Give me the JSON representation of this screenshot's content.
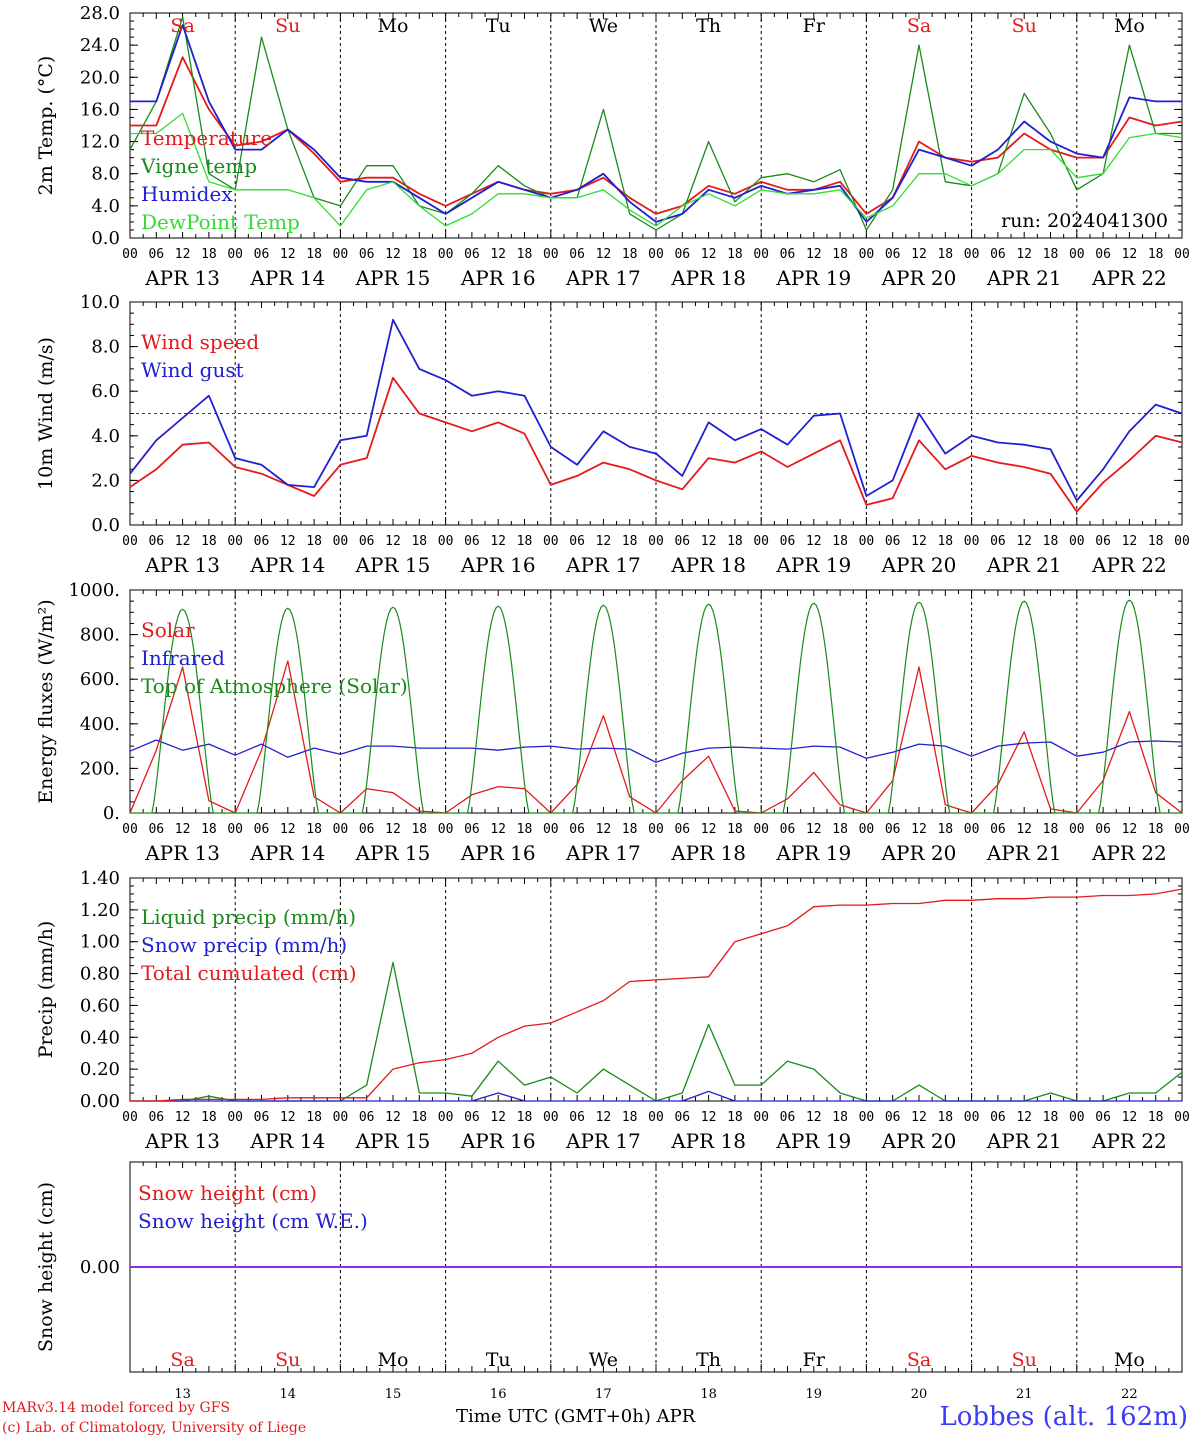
{
  "footer": {
    "model": "MARv3.14 model forced by GFS",
    "credit": "(c) Lab. of Climatology, University of Liege",
    "xlabel": "Time UTC (GMT+0h)",
    "month": "APR",
    "station": "Lobbes (alt. 162m)"
  },
  "colors": {
    "red": "#e41a1c",
    "green": "#1a8a1a",
    "blue": "#2020d0",
    "lightgreen": "#33dd33",
    "purple": "#8a2be2"
  },
  "chart_data": [
    {
      "type": "line",
      "ylabel": "2m Temp. (°C)",
      "ylim": [
        0,
        28
      ],
      "yticks": [
        "0.0",
        "4.0",
        "8.0",
        "12.0",
        "16.0",
        "20.0",
        "24.0",
        "28.0"
      ],
      "hour_ticks": [
        "00",
        "06",
        "12",
        "18"
      ],
      "days": [
        {
          "label": "Sa",
          "date": "APR 13",
          "weekend": true
        },
        {
          "label": "Su",
          "date": "APR 14",
          "weekend": true
        },
        {
          "label": "Mo",
          "date": "APR 15",
          "weekend": false
        },
        {
          "label": "Tu",
          "date": "APR 16",
          "weekend": false
        },
        {
          "label": "We",
          "date": "APR 17",
          "weekend": false
        },
        {
          "label": "Th",
          "date": "APR 18",
          "weekend": false
        },
        {
          "label": "Fr",
          "date": "APR 19",
          "weekend": false
        },
        {
          "label": "Sa",
          "date": "APR 20",
          "weekend": true
        },
        {
          "label": "Su",
          "date": "APR 21",
          "weekend": true
        },
        {
          "label": "Mo",
          "date": "APR 22",
          "weekend": false
        }
      ],
      "annotation": "run: 2024041300",
      "x_hours": [
        0,
        6,
        12,
        18,
        24,
        30,
        36,
        42,
        48,
        54,
        60,
        66,
        72,
        78,
        84,
        90,
        96,
        102,
        108,
        114,
        120,
        126,
        132,
        138,
        144,
        150,
        156,
        162,
        168,
        174,
        180,
        186,
        192,
        198,
        204,
        210,
        216,
        222,
        228,
        234,
        240
      ],
      "series": [
        {
          "name": "Temperature",
          "color": "red",
          "values": [
            14,
            14,
            22.5,
            16,
            11.5,
            12,
            13.5,
            10.5,
            7,
            7.5,
            7.5,
            5.5,
            4,
            5.5,
            7,
            6,
            5.5,
            6,
            7.5,
            5,
            3,
            4,
            6.5,
            5.5,
            7,
            6,
            6,
            7,
            3,
            5,
            12,
            10,
            9.5,
            10,
            13,
            11,
            10,
            10,
            15,
            14,
            14.5
          ]
        },
        {
          "name": "Vigne temp",
          "color": "green",
          "values": [
            11,
            17,
            27.5,
            8,
            6,
            25,
            13.5,
            5,
            4,
            9,
            9,
            4,
            3,
            5.5,
            9,
            6.5,
            5,
            5,
            16,
            3,
            1,
            3,
            12,
            4.5,
            7.5,
            8,
            7,
            8.5,
            1,
            6,
            24,
            7,
            6.5,
            8,
            18,
            13,
            6,
            8,
            24,
            13,
            13
          ]
        },
        {
          "name": "Humidex",
          "color": "blue",
          "values": [
            17,
            17,
            26.5,
            17,
            11,
            11,
            13.5,
            11,
            7.5,
            7,
            7,
            5,
            3,
            5,
            7,
            6,
            5,
            6,
            8,
            4.5,
            2,
            3,
            6,
            5,
            6.5,
            5.5,
            6,
            6.5,
            2,
            5,
            11,
            10,
            9,
            11,
            14.5,
            12,
            10.5,
            10,
            17.5,
            17,
            17
          ]
        },
        {
          "name": "DewPoint Temp",
          "color": "lightgreen",
          "values": [
            13,
            13,
            15.5,
            7,
            6,
            6,
            6,
            5,
            1.5,
            6,
            7,
            4,
            1.5,
            3,
            5.5,
            5.5,
            5,
            5,
            6,
            3.5,
            1.5,
            4,
            5.5,
            4,
            6,
            5.5,
            5.5,
            6,
            2.5,
            4,
            8,
            8,
            6.5,
            8,
            11,
            11,
            7.5,
            8,
            12.5,
            13,
            12.5
          ]
        }
      ]
    },
    {
      "type": "line",
      "ylabel": "10m Wind (m/s)",
      "ylim": [
        0,
        10
      ],
      "yticks": [
        "0.0",
        "2.0",
        "4.0",
        "6.0",
        "8.0",
        "10.0"
      ],
      "reference_line": 5,
      "x_hours": [
        0,
        6,
        12,
        18,
        24,
        30,
        36,
        42,
        48,
        54,
        60,
        66,
        72,
        78,
        84,
        90,
        96,
        102,
        108,
        114,
        120,
        126,
        132,
        138,
        144,
        150,
        156,
        162,
        168,
        174,
        180,
        186,
        192,
        198,
        204,
        210,
        216,
        222,
        228,
        234,
        240
      ],
      "series": [
        {
          "name": "Wind speed",
          "color": "red",
          "values": [
            1.7,
            2.5,
            3.6,
            3.7,
            2.6,
            2.3,
            1.8,
            1.3,
            2.7,
            3,
            6.6,
            5,
            4.6,
            4.2,
            4.6,
            4.1,
            1.8,
            2.2,
            2.8,
            2.5,
            2,
            1.6,
            3,
            2.8,
            3.3,
            2.6,
            3.2,
            3.8,
            0.9,
            1.2,
            3.8,
            2.5,
            3.1,
            2.8,
            2.6,
            2.3,
            0.6,
            1.9,
            2.9,
            4,
            3.7
          ]
        },
        {
          "name": "Wind gust",
          "color": "blue",
          "values": [
            2.3,
            3.8,
            4.8,
            5.8,
            3,
            2.7,
            1.8,
            1.7,
            3.8,
            4,
            9.2,
            7,
            6.5,
            5.8,
            6,
            5.8,
            3.5,
            2.7,
            4.2,
            3.5,
            3.2,
            2.2,
            4.6,
            3.8,
            4.3,
            3.6,
            4.9,
            5,
            1.3,
            2,
            5,
            3.2,
            4,
            3.7,
            3.6,
            3.4,
            1.1,
            2.5,
            4.2,
            5.4,
            5
          ]
        }
      ]
    },
    {
      "type": "line",
      "ylabel": "Energy fluxes (W/m²)",
      "ylim": [
        0,
        1100
      ],
      "yticks": [
        "0.",
        "200.",
        "400.",
        "600.",
        "800.",
        "1000."
      ],
      "x_hours": [
        0,
        6,
        12,
        18,
        24,
        30,
        36,
        42,
        48,
        54,
        60,
        66,
        72,
        78,
        84,
        90,
        96,
        102,
        108,
        114,
        120,
        126,
        132,
        138,
        144,
        150,
        156,
        162,
        168,
        174,
        180,
        186,
        192,
        198,
        204,
        210,
        216,
        222,
        228,
        234,
        240
      ],
      "series": [
        {
          "name": "Solar",
          "color": "red",
          "values": [
            0,
            310,
            720,
            60,
            0,
            310,
            750,
            80,
            0,
            120,
            100,
            10,
            0,
            90,
            130,
            120,
            0,
            140,
            480,
            80,
            0,
            160,
            280,
            10,
            0,
            70,
            200,
            40,
            0,
            160,
            720,
            40,
            0,
            140,
            400,
            20,
            0,
            160,
            500,
            100,
            0
          ]
        },
        {
          "name": "Infrared",
          "color": "blue",
          "values": [
            305,
            360,
            310,
            340,
            285,
            340,
            275,
            320,
            290,
            330,
            330,
            320,
            320,
            320,
            310,
            325,
            330,
            315,
            320,
            315,
            250,
            295,
            320,
            325,
            320,
            315,
            330,
            325,
            270,
            300,
            340,
            330,
            280,
            330,
            345,
            350,
            280,
            300,
            350,
            355,
            350
          ]
        },
        {
          "name": "Top of Atmosphere (Solar)",
          "color": "green",
          "sunrise_hour": 5,
          "sunset_hour": 19,
          "peaks": [
            1005,
            1010,
            1015,
            1020,
            1025,
            1030,
            1035,
            1040,
            1045,
            1050
          ]
        }
      ]
    },
    {
      "type": "line",
      "ylabel": "Precip (mm/h)",
      "ylim": [
        0,
        1.4
      ],
      "yticks": [
        "0.00",
        "0.20",
        "0.40",
        "0.60",
        "0.80",
        "1.00",
        "1.20",
        "1.40"
      ],
      "x_hours": [
        0,
        6,
        12,
        18,
        24,
        30,
        36,
        42,
        48,
        54,
        60,
        66,
        72,
        78,
        84,
        90,
        96,
        102,
        108,
        114,
        120,
        126,
        132,
        138,
        144,
        150,
        156,
        162,
        168,
        174,
        180,
        186,
        192,
        198,
        204,
        210,
        216,
        222,
        228,
        234,
        240
      ],
      "series": [
        {
          "name": "Liquid precip (mm/h)",
          "color": "green",
          "values": [
            0,
            0,
            0,
            0.03,
            0,
            0,
            0,
            0,
            0,
            0.1,
            0.87,
            0.05,
            0.05,
            0.03,
            0.25,
            0.1,
            0.15,
            0.05,
            0.2,
            0.1,
            0,
            0.05,
            0.48,
            0.1,
            0.1,
            0.25,
            0.2,
            0.05,
            0,
            0,
            0.1,
            0,
            0,
            0,
            0,
            0.05,
            0,
            0,
            0.05,
            0.05,
            0.18
          ]
        },
        {
          "name": "Snow precip (mm/h)",
          "color": "blue",
          "values": [
            0,
            0,
            0,
            0,
            0,
            0,
            0,
            0,
            0,
            0,
            0,
            0,
            0,
            0,
            0.05,
            0,
            0,
            0,
            0,
            0,
            0,
            0,
            0.06,
            0,
            0,
            0,
            0,
            0,
            0,
            0,
            0,
            0,
            0,
            0,
            0,
            0,
            0,
            0,
            0,
            0,
            0
          ]
        },
        {
          "name": "Total cumulated (cm)",
          "color": "red",
          "values": [
            0,
            0,
            0.01,
            0.01,
            0.01,
            0.01,
            0.02,
            0.02,
            0.02,
            0.02,
            0.2,
            0.24,
            0.26,
            0.3,
            0.4,
            0.47,
            0.49,
            0.56,
            0.63,
            0.75,
            0.76,
            0.77,
            0.78,
            1.0,
            1.05,
            1.1,
            1.22,
            1.23,
            1.23,
            1.24,
            1.24,
            1.26,
            1.26,
            1.27,
            1.27,
            1.28,
            1.28,
            1.29,
            1.29,
            1.3,
            1.33
          ]
        }
      ]
    },
    {
      "type": "line",
      "ylabel": "Snow height (cm)",
      "yticks": [
        "0.00"
      ],
      "x_hours": [
        0,
        240
      ],
      "series": [
        {
          "name": "Snow height (cm)",
          "color": "red",
          "values": [
            0,
            0
          ]
        },
        {
          "name": "Snow height (cm W.E.)",
          "color": "blue",
          "values": [
            0,
            0
          ]
        }
      ],
      "day_numbers": [
        "13",
        "14",
        "15",
        "16",
        "17",
        "18",
        "19",
        "20",
        "21",
        "22"
      ]
    }
  ]
}
